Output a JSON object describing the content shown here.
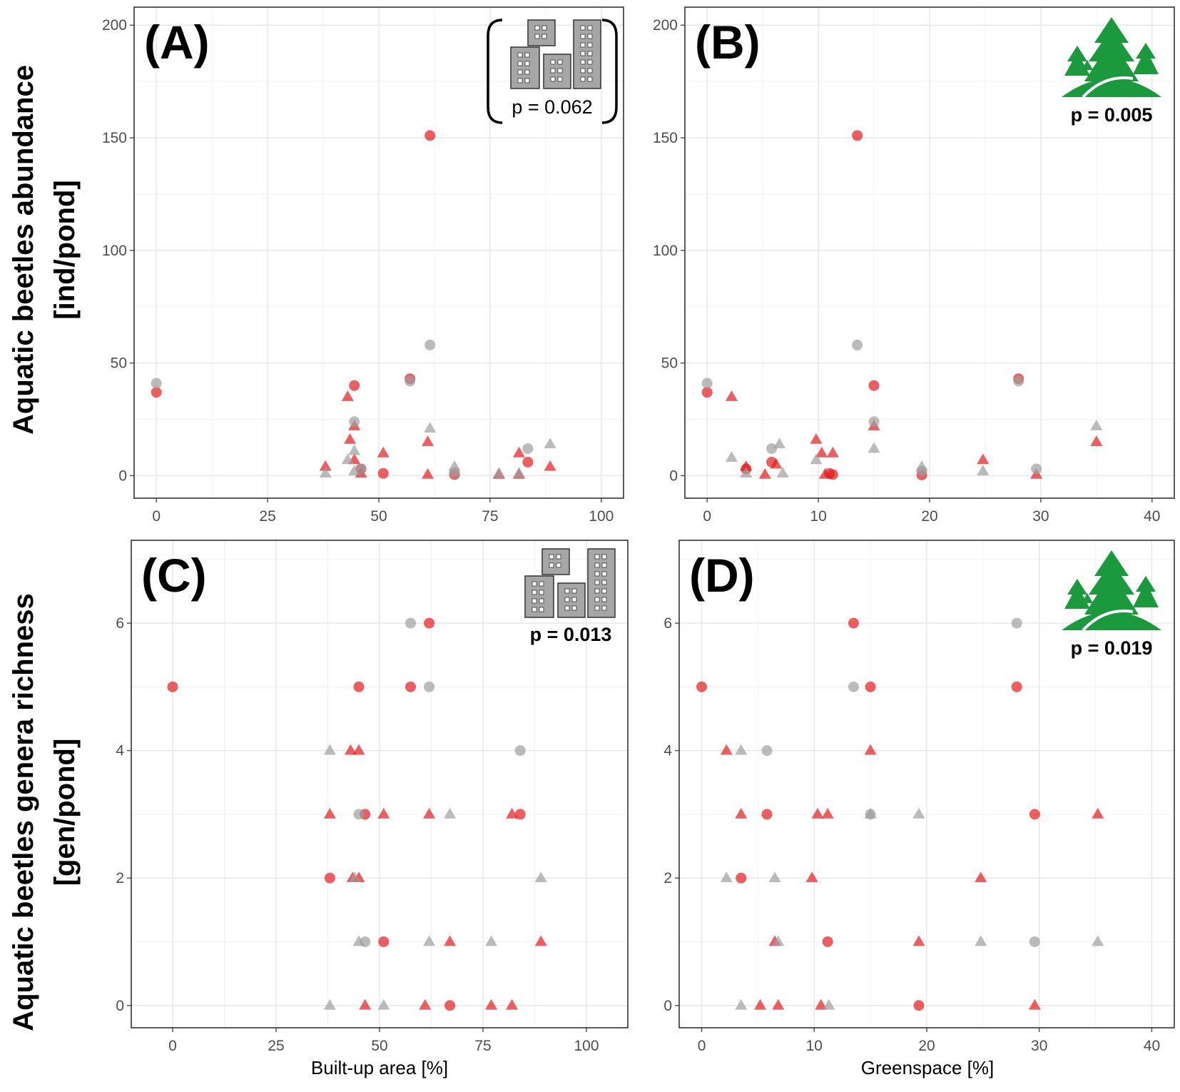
{
  "y_axis_titles": {
    "abundance": [
      "Aquatic beetles abundance",
      "[ind/pond]"
    ],
    "richness": [
      "Aquatic beetles genera richness",
      "[gen/pond]"
    ]
  },
  "x_axis_titles": {
    "builtup": "Built-up area [%]",
    "greenspace": "Greenspace [%]"
  },
  "colors": {
    "red": "#e41a1c",
    "grey": "#9e9e9e",
    "tree": "#1a9a3c",
    "building": "#a6a6a6"
  },
  "icons": {
    "A": "buildings-icon",
    "B": "trees-icon",
    "C": "buildings-icon",
    "D": "trees-icon"
  },
  "chart_data": [
    {
      "panel": "A",
      "letter": "(A)",
      "type": "scatter",
      "p_value": "p = 0.062",
      "p_bold": false,
      "bracketed": true,
      "xlabel": "",
      "ylabel": "Aquatic beetles abundance [ind/pond]",
      "xlim": [
        -5,
        105
      ],
      "ylim": [
        -10,
        208
      ],
      "xticks": [
        0,
        25,
        50,
        75,
        100
      ],
      "yticks": [
        0,
        50,
        100,
        150,
        200
      ],
      "series": [
        {
          "name": "red-circle",
          "color": "red",
          "shape": "circle",
          "points": [
            [
              0,
              37
            ],
            [
              44.5,
              40
            ],
            [
              57,
              43
            ],
            [
              61.5,
              151
            ],
            [
              51,
              1
            ],
            [
              67,
              0.5
            ],
            [
              83.5,
              6
            ],
            [
              46,
              3
            ]
          ]
        },
        {
          "name": "red-triangle",
          "color": "red",
          "shape": "triangle",
          "points": [
            [
              43,
              35
            ],
            [
              43.5,
              16
            ],
            [
              44.5,
              22
            ],
            [
              44.5,
              7
            ],
            [
              46,
              1
            ],
            [
              38,
              4
            ],
            [
              51,
              10
            ],
            [
              61,
              15
            ],
            [
              61,
              0.5
            ],
            [
              77,
              0.5
            ],
            [
              81.5,
              10
            ],
            [
              81.5,
              0.5
            ],
            [
              88.5,
              4
            ]
          ]
        },
        {
          "name": "grey-circle",
          "color": "grey",
          "shape": "circle",
          "points": [
            [
              0,
              41
            ],
            [
              44.5,
              24
            ],
            [
              57,
              42
            ],
            [
              61.5,
              58
            ],
            [
              46,
              3
            ],
            [
              67,
              1.5
            ],
            [
              83.5,
              12
            ]
          ]
        },
        {
          "name": "grey-triangle",
          "color": "grey",
          "shape": "triangle",
          "points": [
            [
              43,
              7
            ],
            [
              44.5,
              11
            ],
            [
              44.5,
              2
            ],
            [
              38,
              1
            ],
            [
              61.5,
              21
            ],
            [
              67,
              4
            ],
            [
              77,
              1
            ],
            [
              81.5,
              1
            ],
            [
              88.5,
              14
            ]
          ]
        }
      ]
    },
    {
      "panel": "B",
      "letter": "(B)",
      "type": "scatter",
      "p_value": "p = 0.005",
      "p_bold": true,
      "bracketed": false,
      "xlabel": "",
      "ylabel": "Aquatic beetles abundance [ind/pond]",
      "xlim": [
        -2,
        42
      ],
      "ylim": [
        -10,
        208
      ],
      "xticks": [
        0,
        10,
        20,
        30,
        40
      ],
      "yticks": [
        0,
        50,
        100,
        150,
        200
      ],
      "series": [
        {
          "name": "red-circle",
          "color": "red",
          "shape": "circle",
          "points": [
            [
              0,
              37
            ],
            [
              13.5,
              151
            ],
            [
              15,
              40
            ],
            [
              28,
              43
            ],
            [
              5.8,
              6
            ],
            [
              11,
              1
            ],
            [
              11.3,
              0.5
            ],
            [
              19.3,
              0.3
            ],
            [
              3.5,
              3
            ]
          ]
        },
        {
          "name": "red-triangle",
          "color": "red",
          "shape": "triangle",
          "points": [
            [
              2.2,
              35
            ],
            [
              3.5,
              4
            ],
            [
              5.2,
              0.5
            ],
            [
              6.2,
              5
            ],
            [
              9.8,
              16
            ],
            [
              10.3,
              10
            ],
            [
              11.3,
              10
            ],
            [
              10.6,
              0.5
            ],
            [
              15,
              22
            ],
            [
              24.8,
              7
            ],
            [
              29.6,
              0.5
            ],
            [
              35,
              15
            ]
          ]
        },
        {
          "name": "grey-circle",
          "color": "grey",
          "shape": "circle",
          "points": [
            [
              0,
              41
            ],
            [
              13.5,
              58
            ],
            [
              15,
              24
            ],
            [
              28,
              42
            ],
            [
              5.8,
              12
            ],
            [
              29.6,
              3
            ],
            [
              19.3,
              2
            ]
          ]
        },
        {
          "name": "grey-triangle",
          "color": "grey",
          "shape": "triangle",
          "points": [
            [
              2.2,
              8
            ],
            [
              3.5,
              1
            ],
            [
              6.5,
              14
            ],
            [
              6.8,
              1
            ],
            [
              9.8,
              7
            ],
            [
              15,
              12
            ],
            [
              19.3,
              4
            ],
            [
              24.8,
              2
            ],
            [
              35,
              22
            ]
          ]
        }
      ]
    },
    {
      "panel": "C",
      "letter": "(C)",
      "type": "scatter",
      "p_value": "p = 0.013",
      "p_bold": true,
      "bracketed": false,
      "xlabel": "Built-up area [%]",
      "ylabel": "Aquatic beetles genera richness [gen/pond]",
      "xlim": [
        -10,
        110
      ],
      "ylim": [
        -0.35,
        7.3
      ],
      "xticks": [
        0,
        25,
        50,
        75,
        100
      ],
      "yticks": [
        0,
        2,
        4,
        6
      ],
      "series": [
        {
          "name": "red-circle",
          "color": "red",
          "shape": "circle",
          "points": [
            [
              0,
              5
            ],
            [
              45,
              5
            ],
            [
              57.5,
              5
            ],
            [
              62,
              6
            ],
            [
              38,
              2
            ],
            [
              46.5,
              3
            ],
            [
              84,
              3
            ],
            [
              51,
              1
            ],
            [
              67,
              0
            ]
          ]
        },
        {
          "name": "red-triangle",
          "color": "red",
          "shape": "triangle",
          "points": [
            [
              43,
              4
            ],
            [
              45,
              4
            ],
            [
              38,
              3
            ],
            [
              51,
              3
            ],
            [
              62,
              3
            ],
            [
              82,
              3
            ],
            [
              43.5,
              2
            ],
            [
              45,
              2
            ],
            [
              67,
              1
            ],
            [
              89,
              1
            ],
            [
              46.5,
              0
            ],
            [
              61,
              0
            ],
            [
              77,
              0
            ],
            [
              82,
              0
            ]
          ]
        },
        {
          "name": "grey-circle",
          "color": "grey",
          "shape": "circle",
          "points": [
            [
              57.5,
              6
            ],
            [
              62,
              5
            ],
            [
              84,
              4
            ],
            [
              45,
              3
            ],
            [
              46.5,
              1
            ]
          ]
        },
        {
          "name": "grey-triangle",
          "color": "grey",
          "shape": "triangle",
          "points": [
            [
              38,
              4
            ],
            [
              67,
              3
            ],
            [
              44,
              2
            ],
            [
              89,
              2
            ],
            [
              45,
              1
            ],
            [
              62,
              1
            ],
            [
              77,
              1
            ],
            [
              38,
              0
            ],
            [
              51,
              0
            ]
          ]
        }
      ]
    },
    {
      "panel": "D",
      "letter": "(D)",
      "type": "scatter",
      "p_value": "p = 0.019",
      "p_bold": true,
      "bracketed": false,
      "xlabel": "Greenspace [%]",
      "ylabel": "Aquatic beetles genera richness [gen/pond]",
      "xlim": [
        -2,
        42
      ],
      "ylim": [
        -0.35,
        7.3
      ],
      "xticks": [
        0,
        10,
        20,
        30,
        40
      ],
      "yticks": [
        0,
        2,
        4,
        6
      ],
      "series": [
        {
          "name": "red-circle",
          "color": "red",
          "shape": "circle",
          "points": [
            [
              0,
              5
            ],
            [
              13.5,
              6
            ],
            [
              15,
              5
            ],
            [
              28,
              5
            ],
            [
              5.8,
              3
            ],
            [
              29.6,
              3
            ],
            [
              3.5,
              2
            ],
            [
              11.2,
              1
            ],
            [
              19.3,
              0
            ]
          ]
        },
        {
          "name": "red-triangle",
          "color": "red",
          "shape": "triangle",
          "points": [
            [
              2.2,
              4
            ],
            [
              15,
              4
            ],
            [
              3.5,
              3
            ],
            [
              10.3,
              3
            ],
            [
              11.2,
              3
            ],
            [
              35.2,
              3
            ],
            [
              9.8,
              2
            ],
            [
              24.8,
              2
            ],
            [
              6.5,
              1
            ],
            [
              19.3,
              1
            ],
            [
              5.2,
              0
            ],
            [
              6.8,
              0
            ],
            [
              10.6,
              0
            ],
            [
              29.6,
              0
            ]
          ]
        },
        {
          "name": "grey-circle",
          "color": "grey",
          "shape": "circle",
          "points": [
            [
              28,
              6
            ],
            [
              13.5,
              5
            ],
            [
              5.8,
              4
            ],
            [
              15,
              3
            ],
            [
              29.6,
              1
            ]
          ]
        },
        {
          "name": "grey-triangle",
          "color": "grey",
          "shape": "triangle",
          "points": [
            [
              3.5,
              4
            ],
            [
              15,
              3
            ],
            [
              19.3,
              3
            ],
            [
              2.2,
              2
            ],
            [
              6.5,
              2
            ],
            [
              6.8,
              1
            ],
            [
              24.8,
              1
            ],
            [
              35.2,
              1
            ],
            [
              3.5,
              0
            ],
            [
              11.3,
              0
            ]
          ]
        }
      ]
    }
  ]
}
